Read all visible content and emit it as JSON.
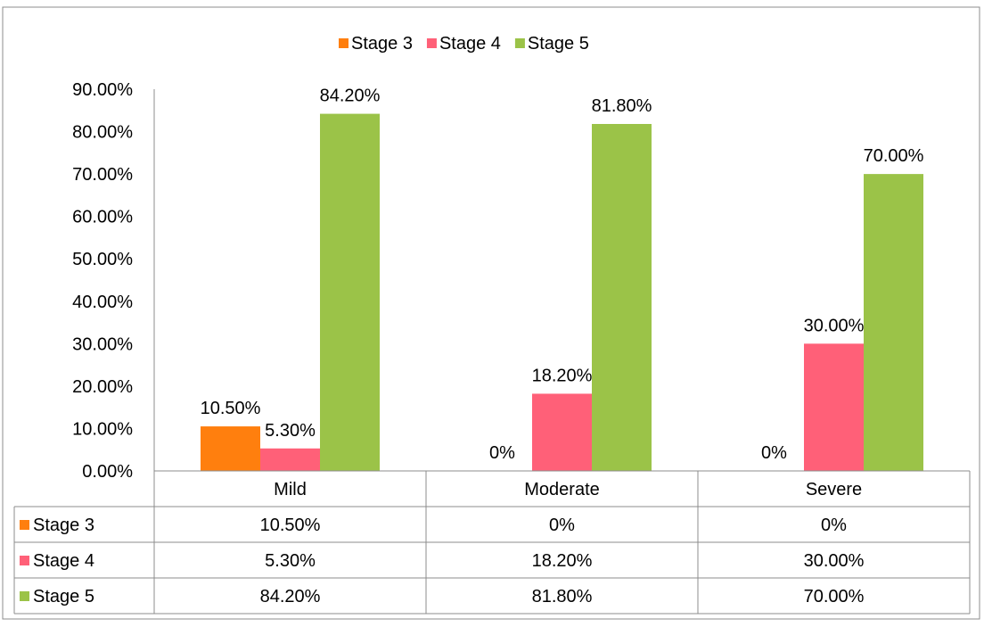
{
  "chart_data": {
    "type": "bar",
    "categories": [
      "Mild",
      "Moderate",
      "Severe"
    ],
    "series": [
      {
        "name": "Stage 3",
        "color": "#ff7f0e",
        "values": [
          10.5,
          0,
          0
        ],
        "labels": [
          "10.50%",
          "0%",
          "0%"
        ]
      },
      {
        "name": "Stage 4",
        "color": "#ff6078",
        "values": [
          5.3,
          18.2,
          30.0
        ],
        "labels": [
          "5.30%",
          "18.20%",
          "30.00%"
        ]
      },
      {
        "name": "Stage 5",
        "color": "#9bc348",
        "values": [
          84.2,
          81.8,
          70.0
        ],
        "labels": [
          "84.20%",
          "81.80%",
          "70.00%"
        ]
      }
    ],
    "ylim": [
      0,
      90
    ],
    "y_ticks": [
      {
        "value": 0,
        "label": "0.00%"
      },
      {
        "value": 10,
        "label": "10.00%"
      },
      {
        "value": 20,
        "label": "20.00%"
      },
      {
        "value": 30,
        "label": "30.00%"
      },
      {
        "value": 40,
        "label": "40.00%"
      },
      {
        "value": 50,
        "label": "50.00%"
      },
      {
        "value": 60,
        "label": "60.00%"
      },
      {
        "value": 70,
        "label": "70.00%"
      },
      {
        "value": 80,
        "label": "80.00%"
      },
      {
        "value": 90,
        "label": "90.00%"
      }
    ],
    "grid": false,
    "legend": "top",
    "data_table": true
  }
}
